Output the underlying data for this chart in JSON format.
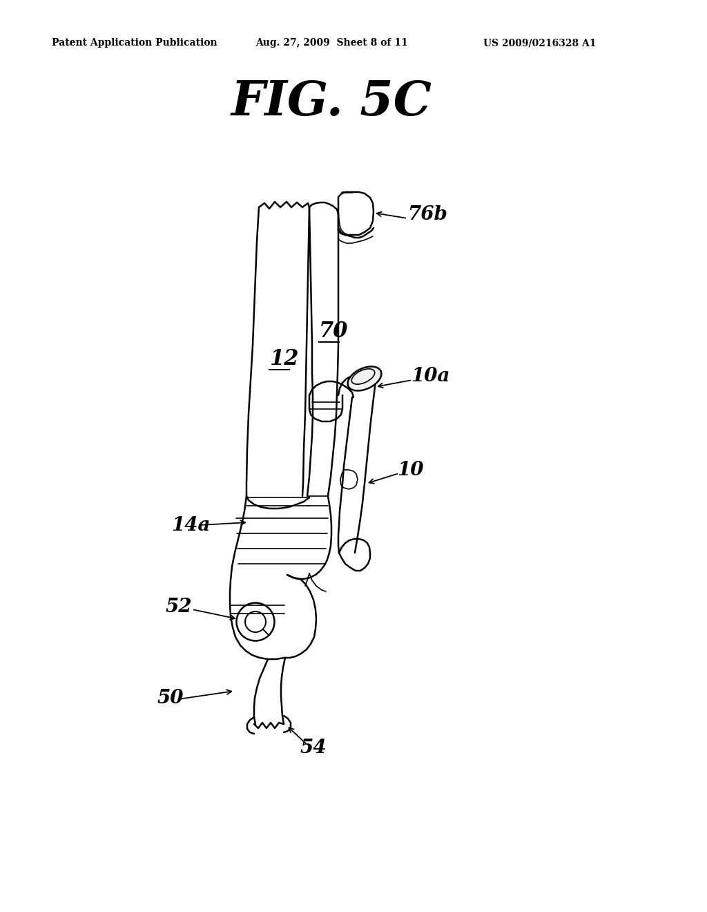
{
  "bg_color": "#ffffff",
  "line_color": "#000000",
  "header_left": "Patent Application Publication",
  "header_mid": "Aug. 27, 2009  Sheet 8 of 11",
  "header_right": "US 2009/0216328 A1",
  "fig_title": "FIG. 5C",
  "lw": 1.8,
  "lw_thin": 1.2,
  "figsize": [
    10.24,
    13.2
  ],
  "dpi": 100
}
